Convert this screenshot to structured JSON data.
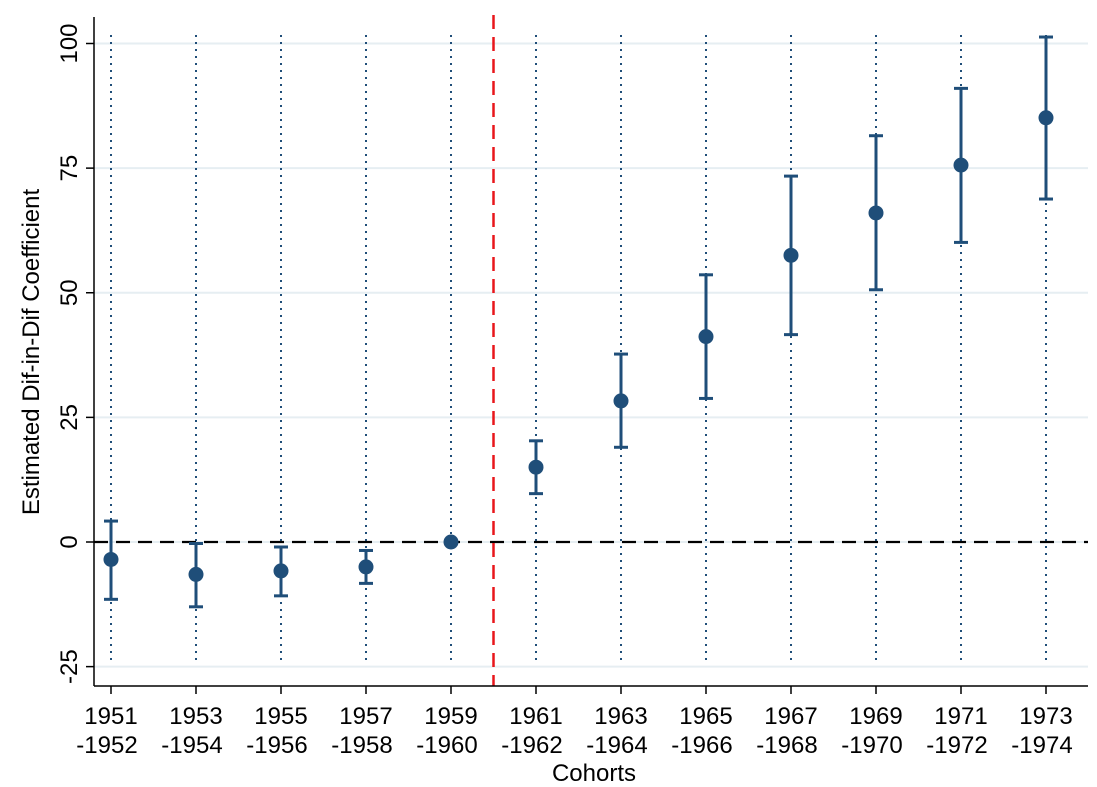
{
  "chart_data": {
    "type": "scatter",
    "title": "",
    "xlabel": "Cohorts",
    "ylabel": "Estimated Dif-in-Dif Coefficient",
    "ylim": [
      -28,
      105
    ],
    "yticks": [
      -25,
      0,
      25,
      50,
      75,
      100
    ],
    "ytick_labels": [
      "-25",
      "0",
      "25",
      "50",
      "75",
      "100"
    ],
    "categories": [
      {
        "line1": "1951",
        "line2": "-1952"
      },
      {
        "line1": "1953",
        "line2": "-1954"
      },
      {
        "line1": "1955",
        "line2": "-1956"
      },
      {
        "line1": "1957",
        "line2": "-1958"
      },
      {
        "line1": "1959",
        "line2": "-1960"
      },
      {
        "line1": "1961",
        "line2": "-1962"
      },
      {
        "line1": "1963",
        "line2": "-1964"
      },
      {
        "line1": "1965",
        "line2": "-1966"
      },
      {
        "line1": "1967",
        "line2": "-1968"
      },
      {
        "line1": "1969",
        "line2": "-1970"
      },
      {
        "line1": "1971",
        "line2": "-1972"
      },
      {
        "line1": "1973",
        "line2": "-1974"
      }
    ],
    "points": [
      {
        "estimate": -3.5,
        "ci_low": -11.5,
        "ci_high": 4.2
      },
      {
        "estimate": -6.5,
        "ci_low": -13.0,
        "ci_high": -0.3
      },
      {
        "estimate": -5.8,
        "ci_low": -10.8,
        "ci_high": -1.0
      },
      {
        "estimate": -5.0,
        "ci_low": -8.3,
        "ci_high": -1.7
      },
      {
        "estimate": 0.0,
        "ci_low": 0.0,
        "ci_high": 0.0
      },
      {
        "estimate": 15.0,
        "ci_low": 9.7,
        "ci_high": 20.3
      },
      {
        "estimate": 28.3,
        "ci_low": 19.0,
        "ci_high": 37.7
      },
      {
        "estimate": 41.2,
        "ci_low": 28.8,
        "ci_high": 53.6
      },
      {
        "estimate": 57.5,
        "ci_low": 41.6,
        "ci_high": 73.4
      },
      {
        "estimate": 66.0,
        "ci_low": 50.6,
        "ci_high": 81.5
      },
      {
        "estimate": 75.6,
        "ci_low": 60.1,
        "ci_high": 91.0
      },
      {
        "estimate": 85.1,
        "ci_low": 68.8,
        "ci_high": 101.3
      }
    ],
    "reference_line_y": 0,
    "treatment_line_after_category_index": 4,
    "grid": true,
    "colors": {
      "points": "#1f4e79",
      "gridlines": "#e6eef2",
      "category_lines": "#1f4e79",
      "reference_line": "#000000",
      "treatment_line": "#e8161b"
    }
  }
}
